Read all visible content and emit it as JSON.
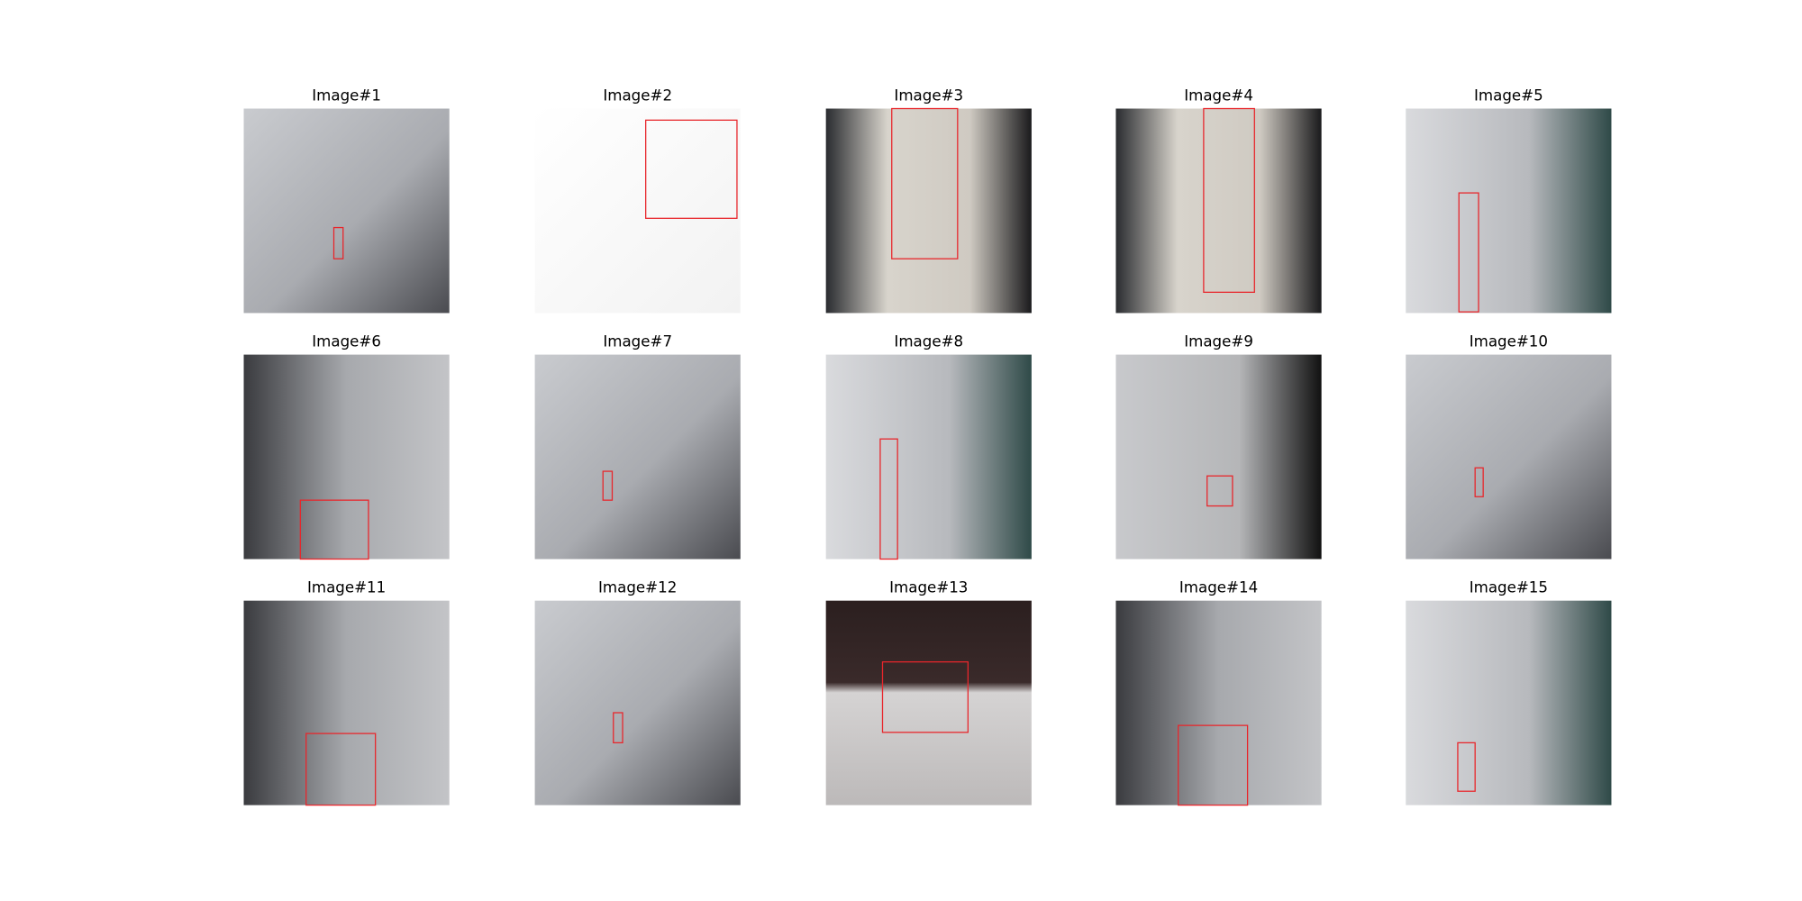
{
  "panels": [
    {
      "title": "Image#1"
    },
    {
      "title": "Image#2"
    },
    {
      "title": "Image#3"
    },
    {
      "title": "Image#4"
    },
    {
      "title": "Image#5"
    },
    {
      "title": "Image#6"
    },
    {
      "title": "Image#7"
    },
    {
      "title": "Image#8"
    },
    {
      "title": "Image#9"
    },
    {
      "title": "Image#10"
    },
    {
      "title": "Image#11"
    },
    {
      "title": "Image#12"
    },
    {
      "title": "Image#13"
    },
    {
      "title": "Image#14"
    },
    {
      "title": "Image#15"
    }
  ]
}
